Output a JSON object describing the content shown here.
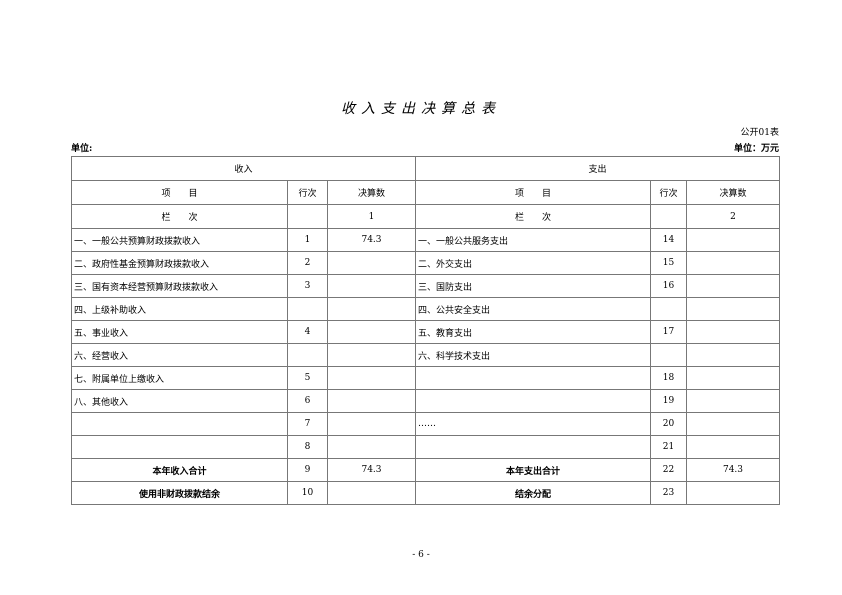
{
  "title": "收入支出决算总表",
  "form_no": "公开01表",
  "unit_left": "单位:",
  "unit_right": "单位：万元",
  "headers": {
    "income": "收入",
    "expense": "支出",
    "item": "项　　目",
    "row_no": "行次",
    "amount": "决算数",
    "col_label": "栏　　次",
    "col_income": "1",
    "col_expense": "2"
  },
  "rows": [
    {
      "li": "一、一般公共预算财政拨款收入",
      "ln": "1",
      "lv": "74.3",
      "ri": "一、一般公共服务支出",
      "rn": "14",
      "rv": ""
    },
    {
      "li": "二、政府性基金预算财政拨款收入",
      "ln": "2",
      "lv": "",
      "ri": "二、外交支出",
      "rn": "15",
      "rv": ""
    },
    {
      "li": "三、国有资本经营预算财政拨款收入",
      "ln": "3",
      "lv": "",
      "ri": "三、国防支出",
      "rn": "16",
      "rv": ""
    },
    {
      "li": "四、上级补助收入",
      "ln": "",
      "lv": "",
      "ri": "四、公共安全支出",
      "rn": "",
      "rv": ""
    },
    {
      "li": "五、事业收入",
      "ln": "4",
      "lv": "",
      "ri": "五、教育支出",
      "rn": "17",
      "rv": ""
    },
    {
      "li": "六、经营收入",
      "ln": "",
      "lv": "",
      "ri": "六、科学技术支出",
      "rn": "",
      "rv": ""
    },
    {
      "li": "七、附属单位上缴收入",
      "ln": "5",
      "lv": "",
      "ri": "",
      "rn": "18",
      "rv": ""
    },
    {
      "li": "八、其他收入",
      "ln": "6",
      "lv": "",
      "ri": "",
      "rn": "19",
      "rv": ""
    },
    {
      "li": "",
      "ln": "7",
      "lv": "",
      "ri": "……",
      "rn": "20",
      "rv": ""
    },
    {
      "li": "",
      "ln": "8",
      "lv": "",
      "ri": "",
      "rn": "21",
      "rv": ""
    }
  ],
  "totals": [
    {
      "li": "本年收入合计",
      "ln": "9",
      "lv": "74.3",
      "ri": "本年支出合计",
      "rn": "22",
      "rv": "74.3"
    },
    {
      "li": "使用非财政拨款结余",
      "ln": "10",
      "lv": "",
      "ri": "结余分配",
      "rn": "23",
      "rv": ""
    }
  ],
  "page_number": "- 6 -"
}
